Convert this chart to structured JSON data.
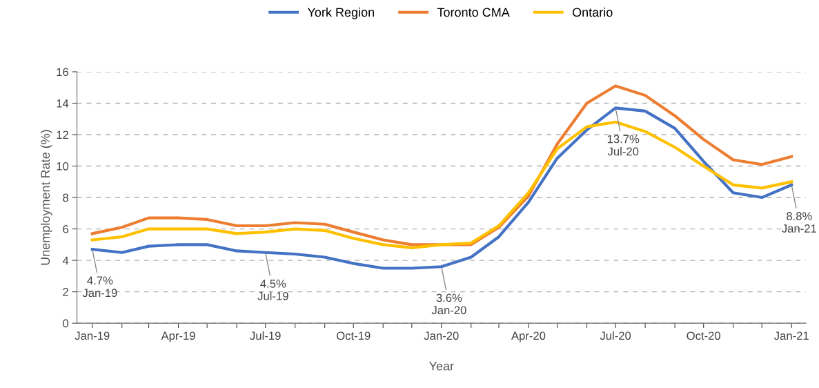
{
  "chart_data": {
    "type": "line",
    "xlabel": "Year",
    "ylabel": "Unemployment Rate (%)",
    "x": [
      "2019-01",
      "2019-02",
      "2019-03",
      "2019-04",
      "2019-05",
      "2019-06",
      "2019-07",
      "2019-08",
      "2019-09",
      "2019-10",
      "2019-11",
      "2019-12",
      "2020-01",
      "2020-02",
      "2020-03",
      "2020-04",
      "2020-05",
      "2020-06",
      "2020-07",
      "2020-08",
      "2020-09",
      "2020-10",
      "2020-11",
      "2020-12",
      "2021-01"
    ],
    "series": [
      {
        "name": "York Region",
        "color": "#4472c4",
        "values": [
          4.7,
          4.5,
          4.9,
          5.0,
          5.0,
          4.6,
          4.5,
          4.4,
          4.2,
          3.8,
          3.5,
          3.5,
          3.6,
          4.2,
          5.5,
          7.7,
          10.5,
          12.3,
          13.7,
          13.5,
          12.4,
          10.3,
          8.3,
          8.0,
          8.8
        ]
      },
      {
        "name": "Toronto CMA",
        "color": "#ed7d31",
        "values": [
          5.7,
          6.1,
          6.7,
          6.7,
          6.6,
          6.2,
          6.2,
          6.4,
          6.3,
          5.8,
          5.3,
          5.0,
          5.0,
          5.0,
          6.1,
          8.1,
          11.4,
          14.0,
          15.1,
          14.5,
          13.2,
          11.7,
          10.4,
          10.1,
          10.6
        ]
      },
      {
        "name": "Ontario",
        "color": "#ffc000",
        "values": [
          5.3,
          5.5,
          6.0,
          6.0,
          6.0,
          5.7,
          5.8,
          6.0,
          5.9,
          5.4,
          5.0,
          4.8,
          5.0,
          5.1,
          6.2,
          8.3,
          11.1,
          12.5,
          12.8,
          12.2,
          11.2,
          10.0,
          8.8,
          8.6,
          9.0
        ]
      }
    ],
    "ylim": [
      0,
      16
    ],
    "yticks": [
      0,
      2,
      4,
      6,
      8,
      10,
      12,
      14,
      16
    ],
    "xlim": [
      "2018-12-16",
      "2021-01-16"
    ],
    "xticks": [
      {
        "value": "2019-01",
        "label": "Jan-19"
      },
      {
        "value": "2019-02",
        "label": null
      },
      {
        "value": "2019-03",
        "label": null
      },
      {
        "value": "2019-04",
        "label": "Apr-19"
      },
      {
        "value": "2019-05",
        "label": null
      },
      {
        "value": "2019-06",
        "label": null
      },
      {
        "value": "2019-07",
        "label": "Jul-19"
      },
      {
        "value": "2019-08",
        "label": null
      },
      {
        "value": "2019-09",
        "label": null
      },
      {
        "value": "2019-10",
        "label": "Oct-19"
      },
      {
        "value": "2019-11",
        "label": null
      },
      {
        "value": "2019-12",
        "label": null
      },
      {
        "value": "2020-01",
        "label": "Jan-20"
      },
      {
        "value": "2020-02",
        "label": null
      },
      {
        "value": "2020-03",
        "label": null
      },
      {
        "value": "2020-04",
        "label": "Apr-20"
      },
      {
        "value": "2020-05",
        "label": null
      },
      {
        "value": "2020-06",
        "label": null
      },
      {
        "value": "2020-07",
        "label": "Jul-20"
      },
      {
        "value": "2020-08",
        "label": null
      },
      {
        "value": "2020-09",
        "label": null
      },
      {
        "value": "2020-10",
        "label": "Oct-20"
      },
      {
        "value": "2020-11",
        "label": null
      },
      {
        "value": "2020-12",
        "label": null
      },
      {
        "value": "2021-01",
        "label": "Jan-21"
      }
    ],
    "grid": "y",
    "legend": "top",
    "marker": "none",
    "line_style": "solid",
    "annotations": [
      {
        "text": "4.7%\nJan-19",
        "x": "2019-01",
        "y": 4.7
      },
      {
        "text": "4.5%\nJul-19",
        "x": "2019-07",
        "y": 4.5
      },
      {
        "text": "3.6%\nJan-20",
        "x": "2020-01",
        "y": 3.6
      },
      {
        "text": "13.7%\nJul-20",
        "x": "2020-07",
        "y": 13.7
      },
      {
        "text": "8.8%\nJan-21",
        "x": "2021-01",
        "y": 8.8
      }
    ]
  }
}
